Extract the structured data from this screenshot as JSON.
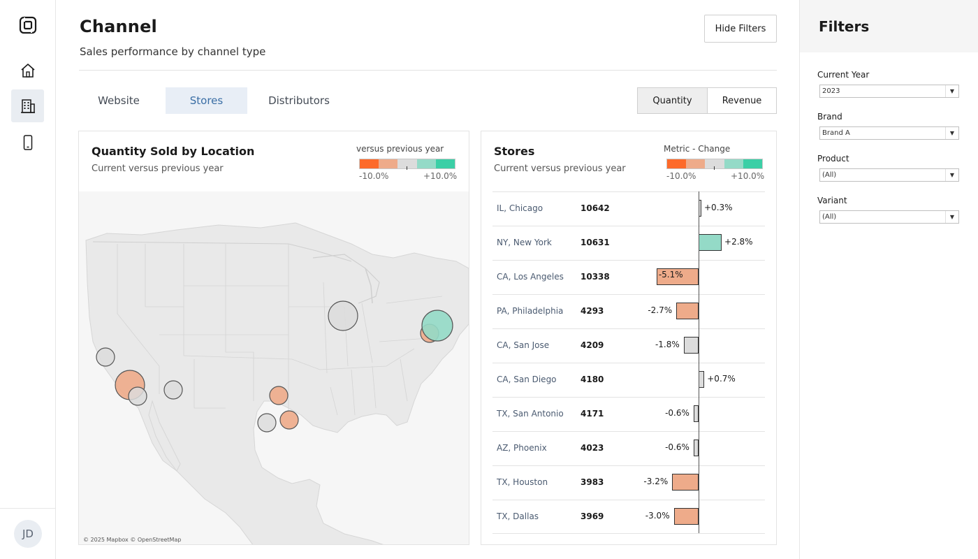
{
  "nav": {
    "logo": "logo-icon",
    "items": [
      {
        "name": "home",
        "icon": "home-icon"
      },
      {
        "name": "stores",
        "icon": "building-icon",
        "active": true
      },
      {
        "name": "mobile",
        "icon": "phone-icon"
      }
    ],
    "avatar_initials": "JD"
  },
  "header": {
    "title": "Channel",
    "subtitle": "Sales performance by channel type",
    "hide_filters_label": "Hide Filters"
  },
  "tabs": [
    {
      "label": "Website",
      "active": false
    },
    {
      "label": "Stores",
      "active": true
    },
    {
      "label": "Distributors",
      "active": false
    }
  ],
  "metric_toggle": {
    "options": [
      "Quantity",
      "Revenue"
    ],
    "selected": "Quantity"
  },
  "colors": {
    "neg_strong": "#fd6a2a",
    "neg_mild": "#eeab8a",
    "neutral": "#dcdcdc",
    "pos_mild": "#94dac7",
    "pos_strong": "#3bcfa6",
    "accent": "#3a6ea5"
  },
  "map_panel": {
    "title": "Quantity Sold by Location",
    "subtitle": "Current versus previous year",
    "legend_title": "versus previous year",
    "legend_min": "-10.0%",
    "legend_max": "+10.0%",
    "attribution": "© 2025 Mapbox © OpenStreetMap",
    "bubbles": [
      {
        "city": "Chicago",
        "change": 0.3
      },
      {
        "city": "New York",
        "change": 2.8
      },
      {
        "city": "Philadelphia",
        "change": -2.7
      },
      {
        "city": "Los Angeles",
        "change": -5.1
      },
      {
        "city": "San Diego",
        "change": 0.7
      },
      {
        "city": "San Jose",
        "change": -1.8
      },
      {
        "city": "Phoenix",
        "change": -0.6
      },
      {
        "city": "Dallas",
        "change": -3.0
      },
      {
        "city": "Houston",
        "change": -3.2
      },
      {
        "city": "San Antonio",
        "change": -0.6
      }
    ]
  },
  "stores_panel": {
    "title": "Stores",
    "subtitle": "Current versus previous year",
    "legend_title": "Metric - Change",
    "legend_min": "-10.0%",
    "legend_max": "+10.0%",
    "rows": [
      {
        "location": "IL, Chicago",
        "quantity": "10642",
        "change": 0.3,
        "label": "+0.3%"
      },
      {
        "location": "NY, New York",
        "quantity": "10631",
        "change": 2.8,
        "label": "+2.8%"
      },
      {
        "location": "CA, Los Angeles",
        "quantity": "10338",
        "change": -5.1,
        "label": "-5.1%"
      },
      {
        "location": "PA, Philadelphia",
        "quantity": "4293",
        "change": -2.7,
        "label": "-2.7%"
      },
      {
        "location": "CA, San Jose",
        "quantity": "4209",
        "change": -1.8,
        "label": "-1.8%"
      },
      {
        "location": "CA, San Diego",
        "quantity": "4180",
        "change": 0.7,
        "label": "+0.7%"
      },
      {
        "location": "TX, San Antonio",
        "quantity": "4171",
        "change": -0.6,
        "label": "-0.6%"
      },
      {
        "location": "AZ, Phoenix",
        "quantity": "4023",
        "change": -0.6,
        "label": "-0.6%"
      },
      {
        "location": "TX, Houston",
        "quantity": "3983",
        "change": -3.2,
        "label": "-3.2%"
      },
      {
        "location": "TX, Dallas",
        "quantity": "3969",
        "change": -3.0,
        "label": "-3.0%"
      }
    ]
  },
  "filters": {
    "title": "Filters",
    "fields": [
      {
        "label": "Current Year",
        "value": "2023"
      },
      {
        "label": "Brand",
        "value": "Brand A"
      },
      {
        "label": "Product",
        "value": "(All)"
      },
      {
        "label": "Variant",
        "value": "(All)"
      }
    ]
  }
}
